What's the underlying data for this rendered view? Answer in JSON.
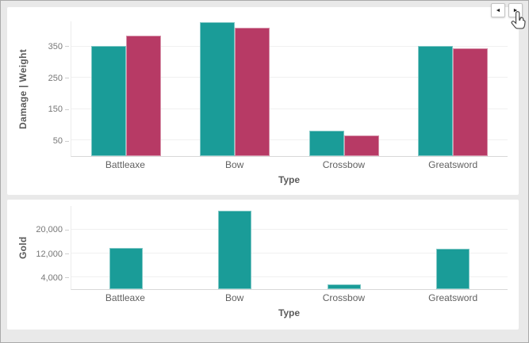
{
  "nav": {
    "prev_glyph": "◄",
    "next_glyph": "►"
  },
  "colors": {
    "teal": "#1A9C98",
    "crimson": "#B73A65",
    "page_background": "#e9e9e9",
    "card_background": "#ffffff"
  },
  "chart_data": [
    {
      "type": "bar",
      "name": "damage-weight-by-type",
      "y_title": "Damage | Weight",
      "x_title": "Type",
      "categories": [
        "Battleaxe",
        "Bow",
        "Crossbow",
        "Greatsword"
      ],
      "series": [
        {
          "name": "Damage",
          "color": "#1A9C98",
          "values": [
            352,
            428,
            80,
            352
          ]
        },
        {
          "name": "Weight",
          "color": "#B73A65",
          "values": [
            385,
            410,
            66,
            343
          ]
        }
      ],
      "ylim": [
        0,
        430
      ],
      "yticks": [
        50,
        150,
        250,
        350
      ],
      "tick_format": "plain",
      "grid": true,
      "legend": "none"
    },
    {
      "type": "bar",
      "name": "gold-by-type",
      "y_title": "Gold",
      "x_title": "Type",
      "categories": [
        "Battleaxe",
        "Bow",
        "Crossbow",
        "Greatsword"
      ],
      "series": [
        {
          "name": "Gold",
          "color": "#1A9C98",
          "values": [
            14000,
            26500,
            1500,
            13500
          ]
        }
      ],
      "ylim": [
        0,
        28000
      ],
      "yticks": [
        4000,
        12000,
        20000
      ],
      "tick_format": "comma",
      "grid": true,
      "legend": "none"
    }
  ]
}
